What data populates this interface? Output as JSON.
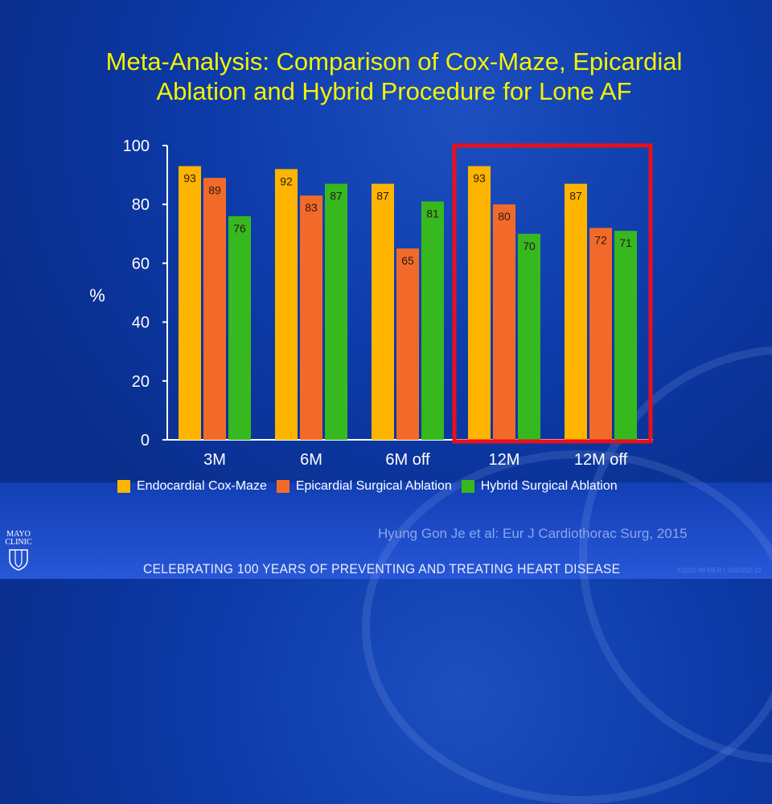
{
  "slide": {
    "title_line1": "Meta-Analysis: Comparison of Cox-Maze, Epicardial",
    "title_line2": "Ablation and Hybrid Procedure for Lone AF",
    "citation": "Hyung Gon Je et al: Eur J Cardiothorac Surg, 2015",
    "footer": "CELEBRATING 100 YEARS OF PREVENTING AND TREATING HEART DISEASE",
    "logo_line1": "MAYO",
    "logo_line2": "CLINIC",
    "code": "©2015 MFMER | 3340252-12",
    "highlight_color": "#e8101a"
  },
  "chart_data": {
    "type": "bar",
    "title": "Meta-Analysis: Comparison of Cox-Maze, Epicardial Ablation and Hybrid Procedure for Lone AF",
    "xlabel": "",
    "ylabel": "%",
    "ylim": [
      0,
      100
    ],
    "yticks": [
      0,
      20,
      40,
      60,
      80,
      100
    ],
    "categories": [
      "3M",
      "6M",
      "6M off",
      "12M",
      "12M off"
    ],
    "series": [
      {
        "name": "Endocardial Cox-Maze",
        "color": "#ffb400",
        "values": [
          93,
          92,
          87,
          93,
          87
        ]
      },
      {
        "name": "Epicardial Surgical Ablation",
        "color": "#f26a2a",
        "values": [
          89,
          83,
          65,
          80,
          72
        ]
      },
      {
        "name": "Hybrid Surgical Ablation",
        "color": "#37b81f",
        "values": [
          76,
          87,
          81,
          70,
          71
        ]
      }
    ],
    "highlighted_categories": [
      "12M",
      "12M off"
    ],
    "legend_position": "bottom",
    "grid": false
  }
}
